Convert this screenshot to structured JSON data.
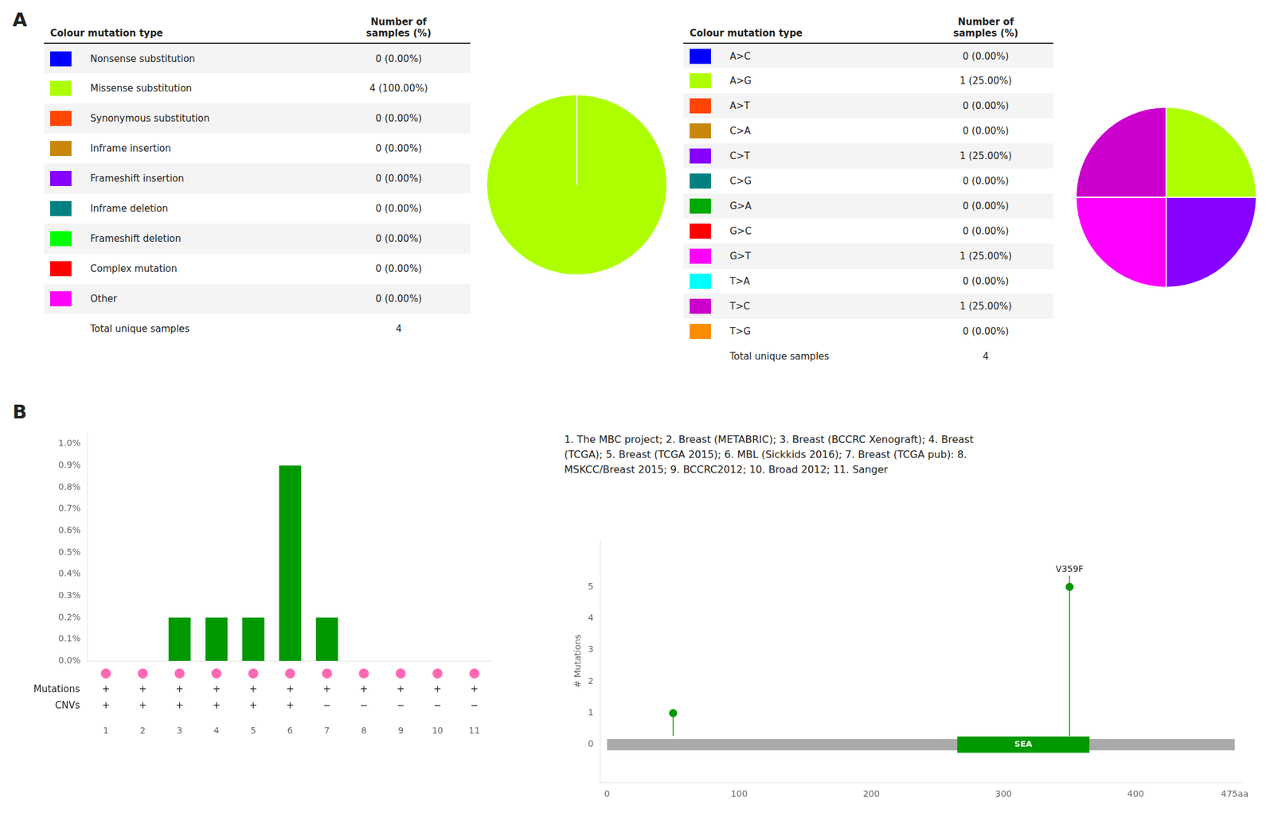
{
  "chart_data": [
    {
      "type": "pie",
      "title": "A",
      "columns": [
        "Colour mutation type",
        "Number of\nsamples (%)"
      ],
      "categories": [
        "Nonsense substitution",
        "Missense substitution",
        "Synonymous substitution",
        "Inframe insertion",
        "Frameshift insertion",
        "Inframe deletion",
        "Frameshift deletion",
        "Complex mutation",
        "Other"
      ],
      "values": [
        0,
        4,
        0,
        0,
        0,
        0,
        0,
        0,
        0
      ],
      "value_labels": [
        "0 (0.00%)",
        "4 (100.00%)",
        "0 (0.00%)",
        "0 (0.00%)",
        "0 (0.00%)",
        "0 (0.00%)",
        "0 (0.00%)",
        "0 (0.00%)",
        "0 (0.00%)"
      ],
      "colors": [
        "#0000FF",
        "#ADFF00",
        "#FF4500",
        "#C8860A",
        "#8800FF",
        "#008080",
        "#00FF00",
        "#FF0000",
        "#FF00FF"
      ],
      "total": {
        "label": "Total unique samples",
        "value": 4
      }
    },
    {
      "type": "pie",
      "columns": [
        "Colour mutation type",
        "Number of\nsamples (%)"
      ],
      "categories": [
        "A>C",
        "A>G",
        "A>T",
        "C>A",
        "C>T",
        "C>G",
        "G>A",
        "G>C",
        "G>T",
        "T>A",
        "T>C",
        "T>G"
      ],
      "values": [
        0,
        1,
        0,
        0,
        1,
        0,
        0,
        0,
        1,
        0,
        1,
        0
      ],
      "value_labels": [
        "0 (0.00%)",
        "1 (25.00%)",
        "0 (0.00%)",
        "0 (0.00%)",
        "1 (25.00%)",
        "0 (0.00%)",
        "0 (0.00%)",
        "0 (0.00%)",
        "1 (25.00%)",
        "0 (0.00%)",
        "1 (25.00%)",
        "0 (0.00%)"
      ],
      "colors": [
        "#0000FF",
        "#ADFF00",
        "#FF4500",
        "#C8860A",
        "#8800FF",
        "#008080",
        "#00AA00",
        "#FF0000",
        "#FF00FF",
        "#00FFFF",
        "#CC00CC",
        "#FF8C00"
      ],
      "total": {
        "label": "Total unique samples",
        "value": 4
      }
    },
    {
      "type": "bar",
      "title": "B",
      "categories": [
        1,
        2,
        3,
        4,
        5,
        6,
        7,
        8,
        9,
        10,
        11
      ],
      "values": [
        0.0,
        0.0,
        0.002,
        0.002,
        0.002,
        0.009,
        0.002,
        0.0,
        0.0,
        0.0,
        0.0
      ],
      "color": "#009900",
      "ylim": [
        0,
        0.0105
      ],
      "yticks": [
        {
          "value": 0.0,
          "label": "0.0%"
        },
        {
          "value": 0.001,
          "label": "0.1%"
        },
        {
          "value": 0.002,
          "label": "0.2%"
        },
        {
          "value": 0.003,
          "label": "0.3%"
        },
        {
          "value": 0.004,
          "label": "0.4%"
        },
        {
          "value": 0.005,
          "label": "0.5%"
        },
        {
          "value": 0.006,
          "label": "0.6%"
        },
        {
          "value": 0.007,
          "label": "0.7%"
        },
        {
          "value": 0.008,
          "label": "0.8%"
        },
        {
          "value": 0.009,
          "label": "0.9%"
        },
        {
          "value": 0.01,
          "label": "1.0%"
        }
      ],
      "grid": false,
      "rows": [
        {
          "marker": "circle",
          "color": "#FF69B4"
        },
        {
          "name": "Mutations",
          "values": [
            "+",
            "+",
            "+",
            "+",
            "+",
            "+",
            "+",
            "+",
            "+",
            "+",
            "+"
          ]
        },
        {
          "name": "CNVs",
          "values": [
            "+",
            "+",
            "+",
            "+",
            "+",
            "+",
            "−",
            "−",
            "−",
            "−",
            "−"
          ]
        }
      ],
      "annotations": [
        "1. The MBC project; 2. Breast (METABRIC); 3. Breast (BCCRC Xenograft); 4. Breast\n(TCGA); 5. Breast (TCGA 2015); 6. MBL (Sickkids 2016); 7. Breast (TCGA pub): 8.\nMSKCC/Breast 2015; 9. BCCRC2012; 10. Broad 2012; 11. Sanger"
      ]
    },
    {
      "type": "lollipop",
      "x": [
        50,
        350
      ],
      "values": [
        1,
        5
      ],
      "color": "#009900",
      "xlim": [
        -5,
        480
      ],
      "xticks": [
        0,
        100,
        200,
        300,
        400,
        {
          "value": 475,
          "label": "475aa"
        }
      ],
      "ylim": [
        -1.2,
        6.5
      ],
      "yticks": [
        0,
        1,
        2,
        3,
        4,
        5
      ],
      "ylabel": "# Mutations",
      "grid": false,
      "backbone": {
        "start": 0,
        "end": 475,
        "color": "#AAAAAA"
      },
      "domains": [
        {
          "name": "SEA",
          "start": 265,
          "end": 365,
          "color": "#009900"
        }
      ],
      "annotations": [
        {
          "text": "V359F",
          "x": 350,
          "y": 5
        }
      ]
    }
  ]
}
